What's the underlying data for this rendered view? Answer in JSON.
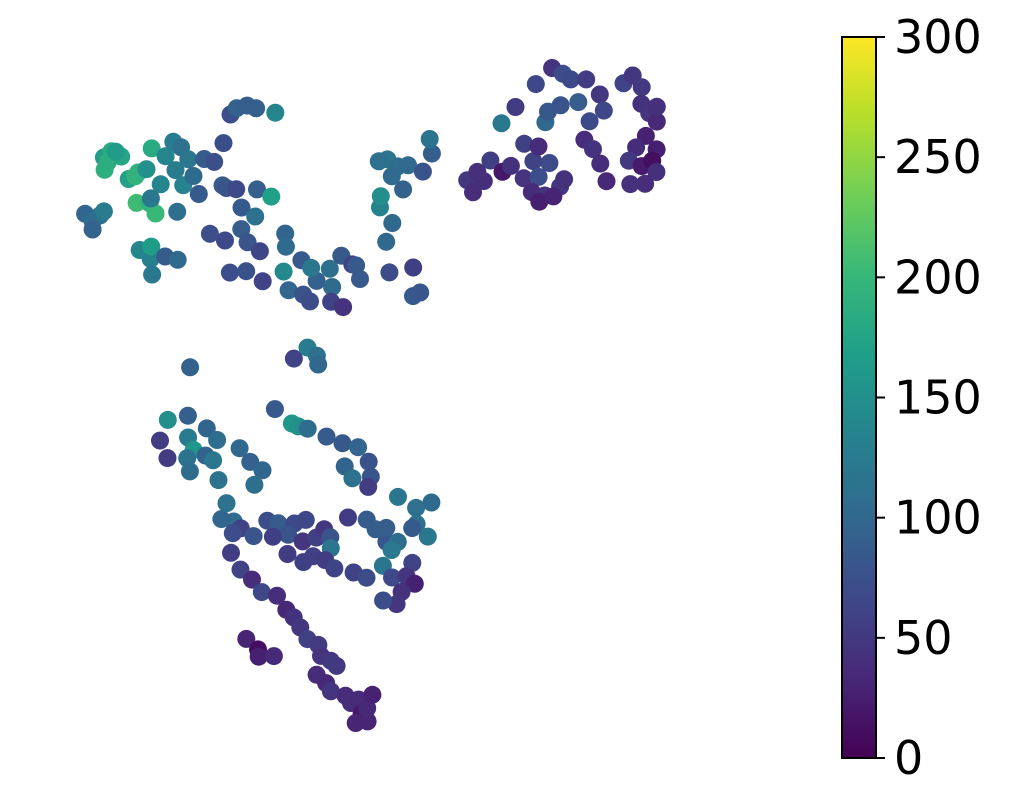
{
  "chart_data": {
    "type": "scatter",
    "title": "",
    "xlabel": "",
    "ylabel": "",
    "axes_visible": false,
    "grid": false,
    "colormap": "viridis",
    "colormap_stops": [
      "#440154",
      "#482878",
      "#3e4989",
      "#31688e",
      "#26828e",
      "#1f9e89",
      "#35b779",
      "#6ece58",
      "#b5de2b",
      "#fde725"
    ],
    "colorbar": {
      "placement": "right",
      "range": [
        0,
        300
      ],
      "ticks": [
        0,
        50,
        100,
        150,
        200,
        250,
        300
      ],
      "tick_labels": [
        "0",
        "50",
        "100",
        "150",
        "200",
        "250",
        "300"
      ]
    },
    "xlim": [
      0,
      1
    ],
    "ylim": [
      0,
      1
    ],
    "points": [
      [
        0.0435,
        0.7774,
        99
      ],
      [
        0.0543,
        0.766,
        107
      ],
      [
        0.0652,
        0.775,
        107
      ],
      [
        0.0543,
        0.7535,
        96
      ],
      [
        0.0706,
        0.781,
        126
      ],
      [
        0.0707,
        0.8635,
        166
      ],
      [
        0.0815,
        0.8729,
        182
      ],
      [
        0.0717,
        0.8446,
        190
      ],
      [
        0.0761,
        0.856,
        188
      ],
      [
        0.0957,
        0.8647,
        177
      ],
      [
        0.0878,
        0.8721,
        164
      ],
      [
        0.1065,
        0.8305,
        171
      ],
      [
        0.1161,
        0.8347,
        195
      ],
      [
        0.1201,
        0.8404,
        192
      ],
      [
        0.1322,
        0.8455,
        150
      ],
      [
        0.1398,
        0.8772,
        182
      ],
      [
        0.1598,
        0.8654,
        137
      ],
      [
        0.1179,
        0.794,
        205
      ],
      [
        0.1369,
        0.7934,
        192
      ],
      [
        0.1453,
        0.7779,
        202
      ],
      [
        0.1527,
        0.8224,
        137
      ],
      [
        0.1386,
        0.8009,
        120
      ],
      [
        0.1709,
        0.8873,
        125
      ],
      [
        0.1822,
        0.879,
        111
      ],
      [
        0.1741,
        0.8441,
        124
      ],
      [
        0.1852,
        0.821,
        133
      ],
      [
        0.1766,
        0.7805,
        109
      ],
      [
        0.1926,
        0.8606,
        119
      ],
      [
        0.2156,
        0.861,
        87
      ],
      [
        0.2002,
        0.8351,
        104
      ],
      [
        0.2078,
        0.8077,
        85
      ],
      [
        0.2435,
        0.8854,
        72
      ],
      [
        0.2301,
        0.8566,
        73
      ],
      [
        0.242,
        0.8207,
        86
      ],
      [
        0.2536,
        0.929,
        74
      ],
      [
        0.2625,
        0.9387,
        94
      ],
      [
        0.2776,
        0.9426,
        89
      ],
      [
        0.2906,
        0.9385,
        89
      ],
      [
        0.3183,
        0.9318,
        137
      ],
      [
        0.1224,
        0.7222,
        137
      ],
      [
        0.1381,
        0.7085,
        131
      ],
      [
        0.1391,
        0.7273,
        166
      ],
      [
        0.1403,
        0.6848,
        121
      ],
      [
        0.1591,
        0.7122,
        87
      ],
      [
        0.1773,
        0.7071,
        104
      ],
      [
        0.2239,
        0.7468,
        73
      ],
      [
        0.2478,
        0.8166,
        80
      ],
      [
        0.2619,
        0.8149,
        67
      ],
      [
        0.2695,
        0.7868,
        85
      ],
      [
        0.2919,
        0.8146,
        91
      ],
      [
        0.3126,
        0.8036,
        169
      ],
      [
        0.2893,
        0.7733,
        112
      ],
      [
        0.2457,
        0.7366,
        67
      ],
      [
        0.2692,
        0.7541,
        88
      ],
      [
        0.2783,
        0.7339,
        80
      ],
      [
        0.2961,
        0.7203,
        64
      ],
      [
        0.2527,
        0.6877,
        70
      ],
      [
        0.2763,
        0.6898,
        76
      ],
      [
        0.3001,
        0.6744,
        61
      ],
      [
        0.3304,
        0.6892,
        142
      ],
      [
        0.3375,
        0.6608,
        98
      ],
      [
        0.3326,
        0.7472,
        97
      ],
      [
        0.3336,
        0.7271,
        102
      ],
      [
        0.356,
        0.7065,
        84
      ],
      [
        0.3587,
        0.654,
        78
      ],
      [
        0.3685,
        0.6436,
        71
      ],
      [
        0.3781,
        0.675,
        93
      ],
      [
        0.3971,
        0.6935,
        109
      ],
      [
        0.4004,
        0.6656,
        104
      ],
      [
        0.4138,
        0.7135,
        85
      ],
      [
        0.4296,
        0.7002,
        61
      ],
      [
        0.399,
        0.6431,
        60
      ],
      [
        0.4163,
        0.635,
        44
      ],
      [
        0.3702,
        0.6948,
        119
      ],
      [
        0.4351,
        0.6984,
        84
      ],
      [
        0.4408,
        0.6778,
        84
      ],
      [
        0.4697,
        0.7871,
        135
      ],
      [
        0.4708,
        0.8042,
        148
      ],
      [
        0.4804,
        0.8605,
        117
      ],
      [
        0.4954,
        0.8498,
        108
      ],
      [
        0.4679,
        0.8575,
        110
      ],
      [
        0.4867,
        0.8346,
        102
      ],
      [
        0.5031,
        0.8147,
        95
      ],
      [
        0.5102,
        0.8514,
        103
      ],
      [
        0.5316,
        0.8418,
        79
      ],
      [
        0.4874,
        0.7634,
        100
      ],
      [
        0.4786,
        0.7346,
        100
      ],
      [
        0.4833,
        0.688,
        71
      ],
      [
        0.5177,
        0.6954,
        57
      ],
      [
        0.5174,
        0.6518,
        84
      ],
      [
        0.5278,
        0.6572,
        81
      ],
      [
        0.5446,
        0.8694,
        89
      ],
      [
        0.5415,
        0.8916,
        116
      ],
      [
        0.5957,
        0.8287,
        48
      ],
      [
        0.6041,
        0.8102,
        38
      ],
      [
        0.6196,
        0.8274,
        39
      ],
      [
        0.6104,
        0.8413,
        41
      ],
      [
        0.6292,
        0.8588,
        57
      ],
      [
        0.6467,
        0.8416,
        19
      ],
      [
        0.6452,
        0.9155,
        120
      ],
      [
        0.6654,
        0.9404,
        53
      ],
      [
        0.6781,
        0.8843,
        59
      ],
      [
        0.6588,
        0.8505,
        43
      ],
      [
        0.6773,
        0.8316,
        45
      ],
      [
        0.6913,
        0.8577,
        60
      ],
      [
        0.6989,
        0.8337,
        70
      ],
      [
        0.6987,
        0.8802,
        37
      ],
      [
        0.7145,
        0.855,
        69
      ],
      [
        0.689,
        0.8107,
        37
      ],
      [
        0.7076,
        0.8054,
        44
      ],
      [
        0.6998,
        0.7959,
        26
      ],
      [
        0.7299,
        0.8189,
        48
      ],
      [
        0.7202,
        0.804,
        30
      ],
      [
        0.7357,
        0.8303,
        43
      ],
      [
        0.7087,
        0.9173,
        101
      ],
      [
        0.7124,
        0.9335,
        83
      ],
      [
        0.7306,
        0.943,
        77
      ],
      [
        0.6948,
        0.9754,
        66
      ],
      [
        0.7183,
        1.0,
        45
      ],
      [
        0.734,
        0.9911,
        71
      ],
      [
        0.7454,
        0.9826,
        68
      ],
      [
        0.7677,
        0.9826,
        55
      ],
      [
        0.7562,
        0.9479,
        88
      ],
      [
        0.7873,
        0.9595,
        49
      ],
      [
        0.793,
        0.935,
        65
      ],
      [
        0.7726,
        0.9187,
        68
      ],
      [
        0.765,
        0.8905,
        38
      ],
      [
        0.7775,
        0.8762,
        44
      ],
      [
        0.788,
        0.8541,
        39
      ],
      [
        0.797,
        0.8271,
        34
      ],
      [
        0.8216,
        0.9767,
        62
      ],
      [
        0.8348,
        0.9885,
        49
      ],
      [
        0.8478,
        0.9707,
        50
      ],
      [
        0.8474,
        0.9453,
        43
      ],
      [
        0.8586,
        0.9312,
        45
      ],
      [
        0.8539,
        0.8964,
        28
      ],
      [
        0.8398,
        0.8788,
        37
      ],
      [
        0.8292,
        0.8585,
        51
      ],
      [
        0.8478,
        0.8503,
        22
      ],
      [
        0.8528,
        0.8232,
        38
      ],
      [
        0.8314,
        0.8227,
        42
      ],
      [
        0.8693,
        0.8758,
        26
      ],
      [
        0.863,
        0.8584,
        12
      ],
      [
        0.8691,
        0.8412,
        40
      ],
      [
        0.8696,
        0.9181,
        34
      ],
      [
        0.8696,
        0.9408,
        40
      ],
      [
        0.1953,
        0.543,
        94
      ],
      [
        0.3453,
        0.5564,
        61
      ],
      [
        0.3649,
        0.5732,
        124
      ],
      [
        0.3785,
        0.5608,
        112
      ],
      [
        0.3804,
        0.5473,
        101
      ],
      [
        0.3178,
        0.4793,
        84
      ],
      [
        0.3424,
        0.4573,
        158
      ],
      [
        0.3516,
        0.4529,
        150
      ],
      [
        0.3652,
        0.4493,
        107
      ],
      [
        0.3923,
        0.4373,
        86
      ],
      [
        0.4154,
        0.4271,
        83
      ],
      [
        0.438,
        0.421,
        98
      ],
      [
        0.4533,
        0.399,
        76
      ],
      [
        0.4563,
        0.376,
        79
      ],
      [
        0.4187,
        0.3918,
        96
      ],
      [
        0.4297,
        0.3736,
        112
      ],
      [
        0.4526,
        0.3605,
        55
      ],
      [
        0.4956,
        0.3452,
        118
      ],
      [
        0.5218,
        0.3284,
        110
      ],
      [
        0.544,
        0.3366,
        104
      ],
      [
        0.5225,
        0.3038,
        110
      ],
      [
        0.5388,
        0.2846,
        120
      ],
      [
        0.163,
        0.4628,
        149
      ],
      [
        0.192,
        0.4692,
        90
      ],
      [
        0.1517,
        0.4311,
        54
      ],
      [
        0.1626,
        0.4044,
        55
      ],
      [
        0.1923,
        0.4359,
        124
      ],
      [
        0.2003,
        0.417,
        155
      ],
      [
        0.191,
        0.4043,
        115
      ],
      [
        0.2194,
        0.4498,
        96
      ],
      [
        0.2343,
        0.432,
        106
      ],
      [
        0.2176,
        0.4082,
        94
      ],
      [
        0.195,
        0.3841,
        106
      ],
      [
        0.2285,
        0.401,
        119
      ],
      [
        0.2363,
        0.3709,
        114
      ],
      [
        0.2668,
        0.4196,
        100
      ],
      [
        0.2821,
        0.3987,
        92
      ],
      [
        0.2998,
        0.3858,
        99
      ],
      [
        0.2881,
        0.3637,
        109
      ],
      [
        0.2478,
        0.3356,
        113
      ],
      [
        0.2583,
        0.3076,
        107
      ],
      [
        0.2685,
        0.2972,
        61
      ],
      [
        0.3068,
        0.3088,
        72
      ],
      [
        0.3227,
        0.305,
        87
      ],
      [
        0.3459,
        0.3046,
        67
      ],
      [
        0.3624,
        0.3101,
        66
      ],
      [
        0.3368,
        0.2874,
        78
      ],
      [
        0.358,
        0.2773,
        48
      ],
      [
        0.3778,
        0.283,
        58
      ],
      [
        0.389,
        0.2958,
        49
      ],
      [
        0.3978,
        0.2836,
        78
      ],
      [
        0.3986,
        0.2669,
        118
      ],
      [
        0.4234,
        0.3138,
        52
      ],
      [
        0.4505,
        0.3106,
        87
      ],
      [
        0.4633,
        0.2958,
        89
      ],
      [
        0.4789,
        0.2768,
        81
      ],
      [
        0.4788,
        0.2979,
        88
      ],
      [
        0.5162,
        0.2975,
        85
      ],
      [
        0.4954,
        0.2765,
        106
      ],
      [
        0.4864,
        0.2641,
        122
      ],
      [
        0.4738,
        0.24,
        117
      ],
      [
        0.487,
        0.2222,
        67
      ],
      [
        0.5164,
        0.2444,
        61
      ],
      [
        0.508,
        0.2243,
        47
      ],
      [
        0.52,
        0.2125,
        27
      ],
      [
        0.5008,
        0.2001,
        42
      ],
      [
        0.4937,
        0.1816,
        47
      ],
      [
        0.4741,
        0.187,
        70
      ],
      [
        0.2404,
        0.3113,
        98
      ],
      [
        0.257,
        0.2898,
        70
      ],
      [
        0.287,
        0.2854,
        80
      ],
      [
        0.3149,
        0.2844,
        57
      ],
      [
        0.336,
        0.258,
        55
      ],
      [
        0.359,
        0.2457,
        57
      ],
      [
        0.373,
        0.2545,
        58
      ],
      [
        0.3905,
        0.2487,
        55
      ],
      [
        0.4037,
        0.236,
        62
      ],
      [
        0.4315,
        0.2297,
        60
      ],
      [
        0.4501,
        0.2218,
        69
      ],
      [
        0.2543,
        0.2599,
        56
      ],
      [
        0.2681,
        0.2342,
        61
      ],
      [
        0.2847,
        0.219,
        38
      ],
      [
        0.2989,
        0.1999,
        66
      ],
      [
        0.3208,
        0.1943,
        39
      ],
      [
        0.3343,
        0.173,
        34
      ],
      [
        0.345,
        0.1612,
        43
      ],
      [
        0.3545,
        0.1459,
        48
      ],
      [
        0.3647,
        0.1281,
        58
      ],
      [
        0.3807,
        0.1192,
        53
      ],
      [
        0.3844,
        0.1025,
        46
      ],
      [
        0.3985,
        0.095,
        51
      ],
      [
        0.4069,
        0.0871,
        50
      ],
      [
        0.3781,
        0.0737,
        37
      ],
      [
        0.3917,
        0.0609,
        33
      ],
      [
        0.3987,
        0.0484,
        45
      ],
      [
        0.4198,
        0.0417,
        37
      ],
      [
        0.4278,
        0.0305,
        39
      ],
      [
        0.4387,
        0.0357,
        36
      ],
      [
        0.4431,
        0.0145,
        20
      ],
      [
        0.4345,
        0.0,
        31
      ],
      [
        0.4517,
        0.0024,
        31
      ],
      [
        0.4512,
        0.0226,
        34
      ],
      [
        0.4586,
        0.0431,
        28
      ],
      [
        0.2765,
        0.1284,
        31
      ],
      [
        0.2934,
        0.1124,
        12
      ],
      [
        0.2943,
        0.1012,
        27
      ],
      [
        0.3163,
        0.1022,
        36
      ]
    ]
  }
}
